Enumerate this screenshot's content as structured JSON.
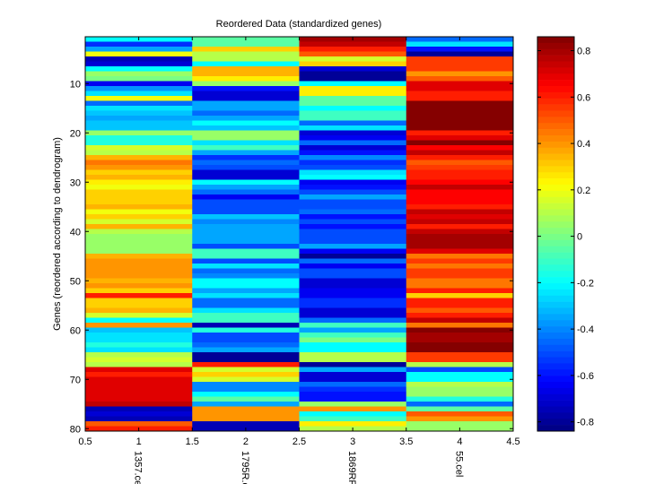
{
  "chart_data": {
    "type": "heatmap",
    "title": "Reordered Data (standardized genes)",
    "xlabel": "",
    "ylabel": "Genes (reordered according to dendrogram)",
    "colormap": "jet",
    "color_range": [
      -0.84,
      0.86
    ],
    "xlim": [
      0.5,
      4.5
    ],
    "ylim": [
      0.5,
      80.5
    ],
    "x_ticks": [
      0.5,
      1,
      1.5,
      2,
      2.5,
      3,
      3.5,
      4,
      4.5
    ],
    "x_tick_labels": [
      "0.5",
      "1",
      "1.5",
      "2",
      "2.5",
      "3",
      "3.5",
      "4",
      "4.5"
    ],
    "y_ticks": [
      10,
      20,
      30,
      40,
      50,
      60,
      70,
      80
    ],
    "y_tick_labels": [
      "10",
      "20",
      "30",
      "40",
      "50",
      "60",
      "70",
      "80"
    ],
    "columns": [
      "1357.cel",
      "1795R.c",
      "1869RR",
      "55.cel"
    ],
    "colorbar": {
      "ticks": [
        0.8,
        0.6,
        0.4,
        0.2,
        0,
        -0.2,
        -0.4,
        -0.6,
        -0.8
      ],
      "tick_labels": [
        "0.8",
        "0.6",
        "0.4",
        "0.2",
        "0",
        "-0.2",
        "-0.4",
        "-0.6",
        "-0.8"
      ]
    },
    "values": [
      [
        -0.2,
        -0.05,
        0.8,
        -0.45
      ],
      [
        -0.55,
        -0.05,
        0.75,
        -0.25
      ],
      [
        -0.35,
        0.3,
        0.6,
        -0.6
      ],
      [
        0.2,
        0.1,
        0.5,
        -0.8
      ],
      [
        -0.75,
        0.1,
        0.15,
        0.55
      ],
      [
        -0.7,
        -0.2,
        0.3,
        0.55
      ],
      [
        -0.2,
        0.35,
        -0.7,
        0.55
      ],
      [
        0.05,
        0.35,
        -0.8,
        0.4
      ],
      [
        0.0,
        0.25,
        -0.8,
        0.5
      ],
      [
        -0.65,
        0.05,
        -0.2,
        0.7
      ],
      [
        -0.38,
        -0.6,
        0.25,
        0.7
      ],
      [
        -0.25,
        -0.7,
        0.25,
        0.6
      ],
      [
        0.2,
        -0.7,
        -0.05,
        0.6
      ],
      [
        -0.45,
        -0.35,
        -0.05,
        0.85
      ],
      [
        -0.25,
        -0.35,
        -0.2,
        0.85
      ],
      [
        -0.3,
        -0.45,
        -0.1,
        0.85
      ],
      [
        -0.35,
        -0.35,
        -0.1,
        0.85
      ],
      [
        -0.3,
        -0.2,
        -0.45,
        0.85
      ],
      [
        -0.3,
        -0.3,
        -0.25,
        0.85
      ],
      [
        0.05,
        0.05,
        -0.7,
        0.6
      ],
      [
        -0.15,
        0.05,
        -0.65,
        0.7
      ],
      [
        -0.15,
        -0.25,
        -0.45,
        0.85
      ],
      [
        0.15,
        -0.1,
        -0.7,
        0.65
      ],
      [
        0.1,
        -0.35,
        -0.6,
        0.75
      ],
      [
        0.35,
        -0.55,
        -0.4,
        0.6
      ],
      [
        0.45,
        -0.45,
        -0.55,
        0.5
      ],
      [
        0.4,
        -0.5,
        -0.5,
        0.55
      ],
      [
        0.3,
        -0.7,
        -0.25,
        0.6
      ],
      [
        0.35,
        -0.7,
        -0.2,
        0.6
      ],
      [
        0.25,
        -0.2,
        -0.65,
        0.65
      ],
      [
        0.2,
        -0.35,
        -0.6,
        0.75
      ],
      [
        0.3,
        -0.45,
        -0.5,
        0.65
      ],
      [
        0.3,
        -0.65,
        -0.35,
        0.65
      ],
      [
        0.3,
        -0.5,
        -0.5,
        0.65
      ],
      [
        0.35,
        -0.5,
        -0.5,
        0.6
      ],
      [
        0.2,
        -0.5,
        -0.45,
        0.75
      ],
      [
        0.3,
        -0.3,
        -0.6,
        0.7
      ],
      [
        0.15,
        -0.4,
        -0.5,
        0.75
      ],
      [
        0.35,
        -0.35,
        -0.6,
        0.6
      ],
      [
        0.1,
        -0.35,
        -0.5,
        0.75
      ],
      [
        0.05,
        -0.35,
        -0.5,
        0.8
      ],
      [
        0.05,
        -0.35,
        -0.5,
        0.8
      ],
      [
        0.05,
        -0.5,
        -0.35,
        0.8
      ],
      [
        0.05,
        -0.1,
        -0.65,
        0.7
      ],
      [
        0.35,
        -0.1,
        -0.8,
        0.45
      ],
      [
        0.4,
        -0.5,
        -0.45,
        0.55
      ],
      [
        0.4,
        -0.25,
        -0.65,
        0.45
      ],
      [
        0.4,
        -0.45,
        -0.5,
        0.55
      ],
      [
        0.4,
        -0.4,
        -0.5,
        0.55
      ],
      [
        0.35,
        -0.2,
        -0.7,
        0.45
      ],
      [
        0.4,
        -0.2,
        -0.7,
        0.45
      ],
      [
        0.3,
        -0.35,
        -0.65,
        0.6
      ],
      [
        0.6,
        -0.25,
        -0.65,
        0.3
      ],
      [
        0.3,
        -0.45,
        -0.55,
        0.6
      ],
      [
        0.3,
        -0.45,
        -0.55,
        0.6
      ],
      [
        0.35,
        -0.25,
        -0.7,
        0.5
      ],
      [
        0.15,
        -0.1,
        -0.7,
        0.6
      ],
      [
        -0.2,
        -0.1,
        -0.45,
        0.75
      ],
      [
        0.4,
        -0.75,
        -0.1,
        0.45
      ],
      [
        -0.3,
        -0.15,
        -0.35,
        0.85
      ],
      [
        -0.25,
        -0.5,
        -0.1,
        0.8
      ],
      [
        -0.25,
        -0.5,
        0.0,
        0.8
      ],
      [
        -0.15,
        -0.45,
        -0.2,
        0.85
      ],
      [
        -0.25,
        -0.35,
        -0.2,
        0.85
      ],
      [
        0.1,
        -0.8,
        0.1,
        0.55
      ],
      [
        0.15,
        -0.8,
        0.1,
        0.55
      ],
      [
        0.1,
        0.6,
        -0.8,
        0.1
      ],
      [
        0.7,
        0.15,
        -0.35,
        -0.5
      ],
      [
        0.6,
        0.3,
        -0.7,
        -0.2
      ],
      [
        0.7,
        0.15,
        -0.7,
        -0.2
      ],
      [
        0.7,
        -0.4,
        -0.45,
        0.1
      ],
      [
        0.7,
        -0.4,
        -0.55,
        0.05
      ],
      [
        0.7,
        -0.2,
        -0.6,
        0.05
      ],
      [
        0.7,
        -0.05,
        -0.6,
        -0.15
      ],
      [
        0.75,
        -0.35,
        0.05,
        -0.45
      ],
      [
        -0.75,
        0.4,
        0.4,
        -0.05
      ],
      [
        -0.7,
        0.4,
        -0.2,
        0.5
      ],
      [
        -0.75,
        0.4,
        -0.1,
        0.4
      ],
      [
        0.5,
        -0.75,
        0.25,
        0.05
      ],
      [
        0.6,
        -0.75,
        0.1,
        0.05
      ]
    ]
  }
}
